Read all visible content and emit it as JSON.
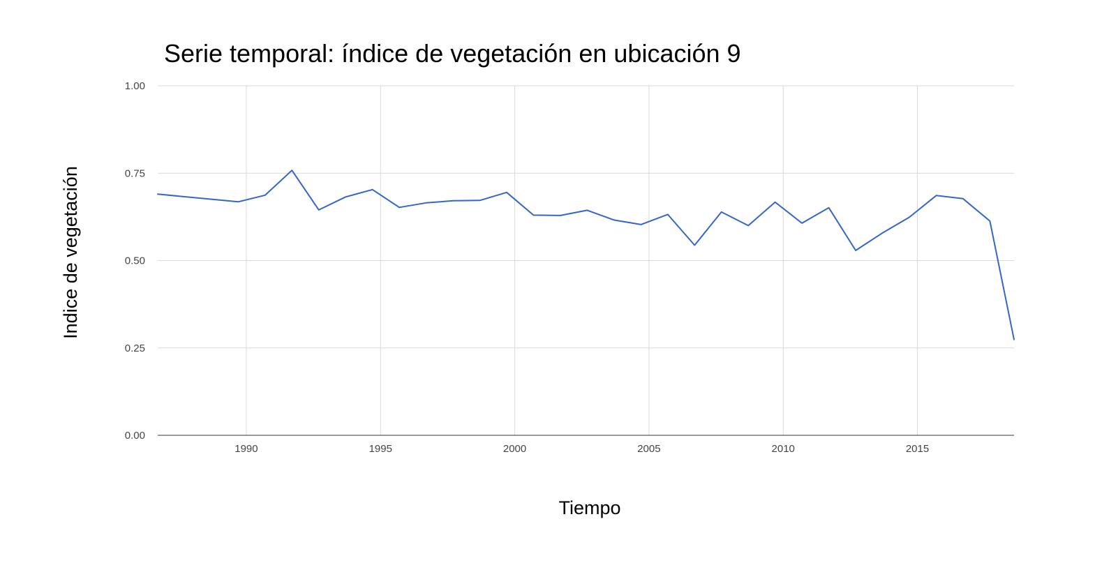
{
  "chart_data": {
    "type": "line",
    "title": "Serie temporal: índice de vegetación en ubicación 9",
    "xlabel": "Tiempo",
    "ylabel": "Indice de vegetación",
    "xlim": [
      1986.7,
      2018.6
    ],
    "ylim": [
      0,
      1
    ],
    "x_ticks": [
      1990,
      1995,
      2000,
      2005,
      2010,
      2015
    ],
    "x_tick_labels": [
      "1990",
      "1995",
      "2000",
      "2005",
      "2010",
      "2015"
    ],
    "y_ticks": [
      0,
      0.25,
      0.5,
      0.75,
      1
    ],
    "y_tick_labels": [
      "0.00",
      "0.25",
      "0.50",
      "0.75",
      "1.00"
    ],
    "grid": true,
    "legend": "none",
    "series": [
      {
        "color": "#3366cc",
        "points": [
          [
            1986.7,
            0.69
          ],
          [
            1989.7,
            0.668
          ],
          [
            1990.7,
            0.687
          ],
          [
            1991.7,
            0.758
          ],
          [
            1992.7,
            0.645
          ],
          [
            1993.7,
            0.682
          ],
          [
            1994.7,
            0.703
          ],
          [
            1995.7,
            0.652
          ],
          [
            1996.7,
            0.665
          ],
          [
            1997.7,
            0.671
          ],
          [
            1998.7,
            0.672
          ],
          [
            1999.7,
            0.695
          ],
          [
            2000.7,
            0.63
          ],
          [
            2001.7,
            0.629
          ],
          [
            2002.7,
            0.644
          ],
          [
            2003.7,
            0.616
          ],
          [
            2004.7,
            0.603
          ],
          [
            2005.7,
            0.632
          ],
          [
            2006.7,
            0.544
          ],
          [
            2007.7,
            0.639
          ],
          [
            2008.7,
            0.6
          ],
          [
            2009.7,
            0.667
          ],
          [
            2010.7,
            0.607
          ],
          [
            2011.7,
            0.651
          ],
          [
            2012.7,
            0.529
          ],
          [
            2013.7,
            0.579
          ],
          [
            2014.7,
            0.624
          ],
          [
            2015.7,
            0.686
          ],
          [
            2016.7,
            0.677
          ],
          [
            2017.7,
            0.613
          ],
          [
            2018.6,
            0.274
          ]
        ]
      }
    ]
  }
}
